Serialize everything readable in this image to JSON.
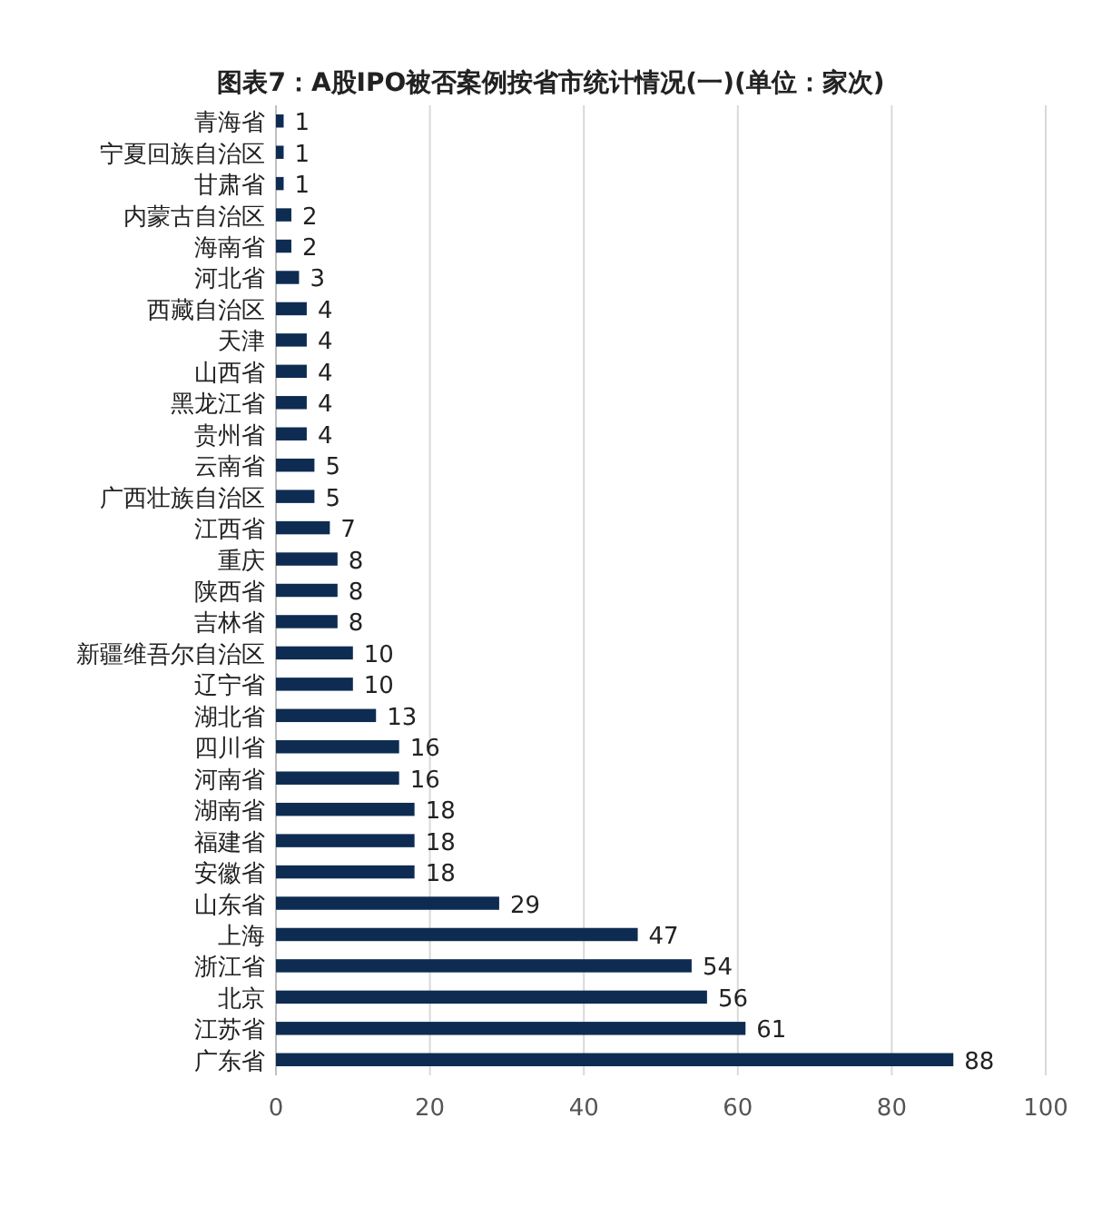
{
  "chart_data": {
    "type": "bar",
    "orientation": "horizontal",
    "title": "图表7：A股IPO被否案例按省市统计情况(一)(单位：家次)",
    "categories": [
      "青海省",
      "宁夏回族自治区",
      "甘肃省",
      "内蒙古自治区",
      "海南省",
      "河北省",
      "西藏自治区",
      "天津",
      "山西省",
      "黑龙江省",
      "贵州省",
      "云南省",
      "广西壮族自治区",
      "江西省",
      "重庆",
      "陕西省",
      "吉林省",
      "新疆维吾尔自治区",
      "辽宁省",
      "湖北省",
      "四川省",
      "河南省",
      "湖南省",
      "福建省",
      "安徽省",
      "山东省",
      "上海",
      "浙江省",
      "北京",
      "江苏省",
      "广东省"
    ],
    "values": [
      1,
      1,
      1,
      2,
      2,
      3,
      4,
      4,
      4,
      4,
      4,
      5,
      5,
      7,
      8,
      8,
      8,
      10,
      10,
      13,
      16,
      16,
      18,
      18,
      18,
      29,
      47,
      54,
      56,
      61,
      88
    ],
    "color": "#0e2c52",
    "xlim": [
      0,
      100
    ],
    "xticks": [
      0,
      20,
      40,
      60,
      80,
      100
    ],
    "grid": "x",
    "data_labels": true
  }
}
